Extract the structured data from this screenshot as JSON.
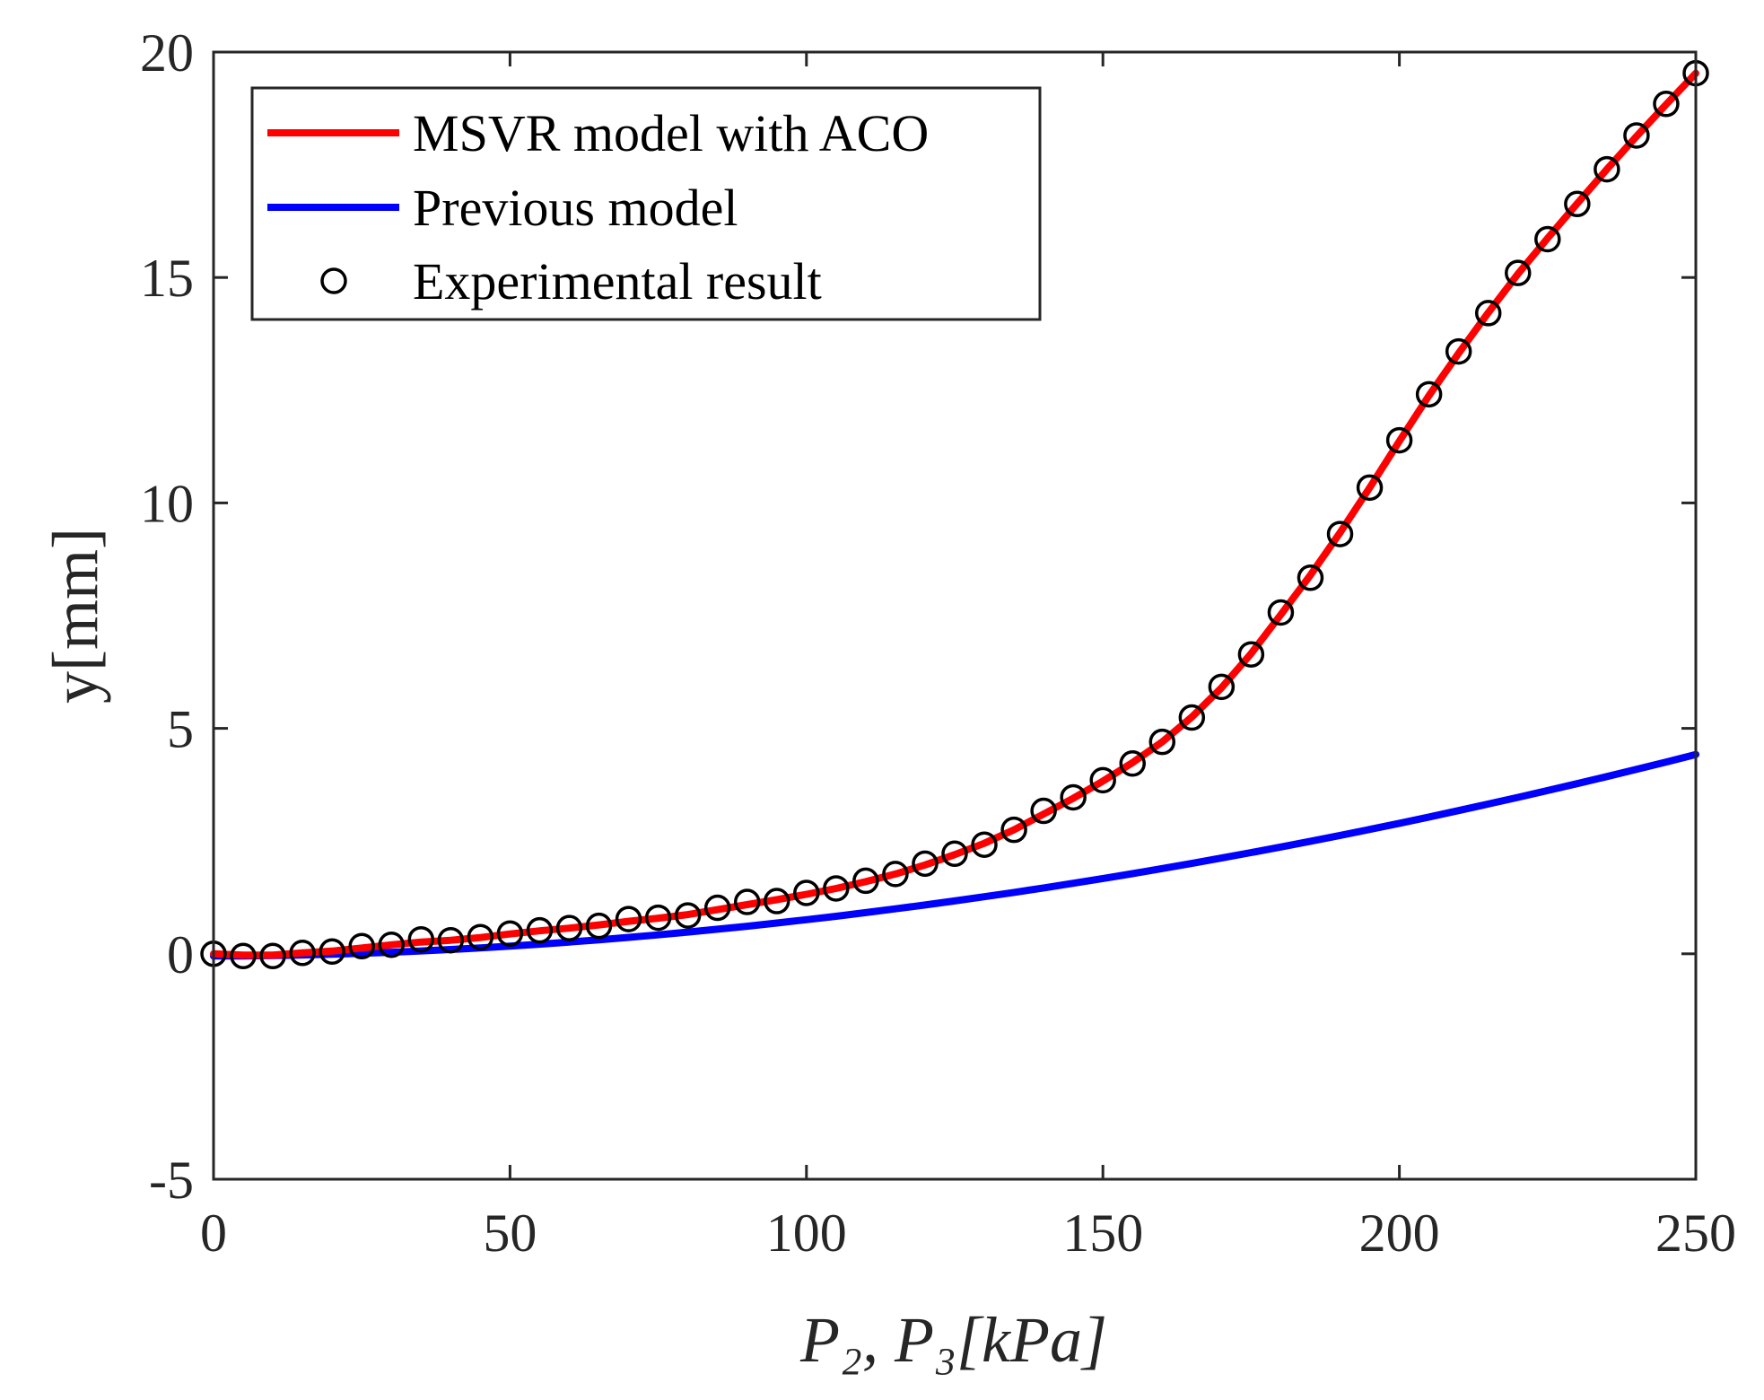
{
  "chart_data": {
    "type": "line",
    "title": "",
    "xlabel": "P₂, P₃[kPa]",
    "ylabel": "y[mm]",
    "xlim": [
      0,
      250
    ],
    "ylim": [
      -5,
      20
    ],
    "xticks": [
      0,
      50,
      100,
      150,
      200,
      250
    ],
    "yticks": [
      -5,
      0,
      5,
      10,
      15,
      20
    ],
    "xtick_labels": [
      "0",
      "50",
      "100",
      "150",
      "200",
      "250"
    ],
    "ytick_labels": [
      "-5",
      "0",
      "5",
      "10",
      "15",
      "20"
    ],
    "grid": false,
    "legend_position": "top-left",
    "x": [
      0,
      5,
      10,
      15,
      20,
      25,
      30,
      35,
      40,
      45,
      50,
      55,
      60,
      65,
      70,
      75,
      80,
      85,
      90,
      95,
      100,
      105,
      110,
      115,
      120,
      125,
      130,
      135,
      140,
      145,
      150,
      155,
      160,
      165,
      170,
      175,
      180,
      185,
      190,
      195,
      200,
      205,
      210,
      215,
      220,
      225,
      230,
      235,
      240,
      245,
      250
    ],
    "series": [
      {
        "name": "MSVR model with ACO",
        "color": "#ff0000",
        "style": "line",
        "values": [
          0,
          -0.03,
          -0.03,
          0.02,
          0.06,
          0.13,
          0.2,
          0.26,
          0.3,
          0.36,
          0.44,
          0.51,
          0.57,
          0.64,
          0.72,
          0.79,
          0.87,
          0.98,
          1.09,
          1.2,
          1.32,
          1.45,
          1.6,
          1.77,
          1.97,
          2.2,
          2.45,
          2.75,
          3.1,
          3.45,
          3.83,
          4.24,
          4.7,
          5.25,
          5.9,
          6.66,
          7.52,
          8.4,
          9.34,
          10.34,
          11.37,
          12.38,
          13.32,
          14.22,
          15.08,
          15.87,
          16.64,
          17.4,
          18.13,
          18.84,
          19.53
        ]
      },
      {
        "name": "Previous model",
        "color": "#0000ff",
        "style": "line",
        "values": [
          -0.05,
          -0.04,
          -0.03,
          -0.01,
          0.02,
          0.05,
          0.09,
          0.13,
          0.18,
          0.24,
          0.3,
          0.37,
          0.44,
          0.52,
          0.6,
          0.69,
          0.78,
          0.88,
          0.99,
          1.1,
          1.21,
          1.33,
          1.46,
          1.59,
          1.72,
          1.86,
          2.01,
          2.16,
          2.31,
          2.47,
          2.63,
          2.8,
          2.97,
          3.15,
          3.33,
          3.51,
          3.7,
          3.9,
          4.1,
          4.3,
          2.92,
          3.06,
          3.2,
          3.35,
          3.5,
          3.65,
          3.8,
          3.95,
          4.1,
          4.26,
          4.42
        ]
      },
      {
        "name": "Experimental result",
        "color": "#000000",
        "style": "marker-circle",
        "values": [
          0,
          -0.05,
          -0.05,
          0.02,
          0.05,
          0.17,
          0.2,
          0.32,
          0.3,
          0.37,
          0.45,
          0.52,
          0.57,
          0.62,
          0.77,
          0.8,
          0.85,
          1.02,
          1.15,
          1.17,
          1.35,
          1.45,
          1.62,
          1.77,
          2.0,
          2.22,
          2.42,
          2.75,
          3.17,
          3.47,
          3.85,
          4.22,
          4.7,
          5.24,
          5.92,
          6.64,
          7.57,
          8.34,
          9.31,
          10.34,
          11.39,
          12.41,
          13.36,
          14.21,
          15.1,
          15.85,
          16.63,
          17.4,
          18.15,
          18.85,
          19.53
        ]
      }
    ]
  }
}
